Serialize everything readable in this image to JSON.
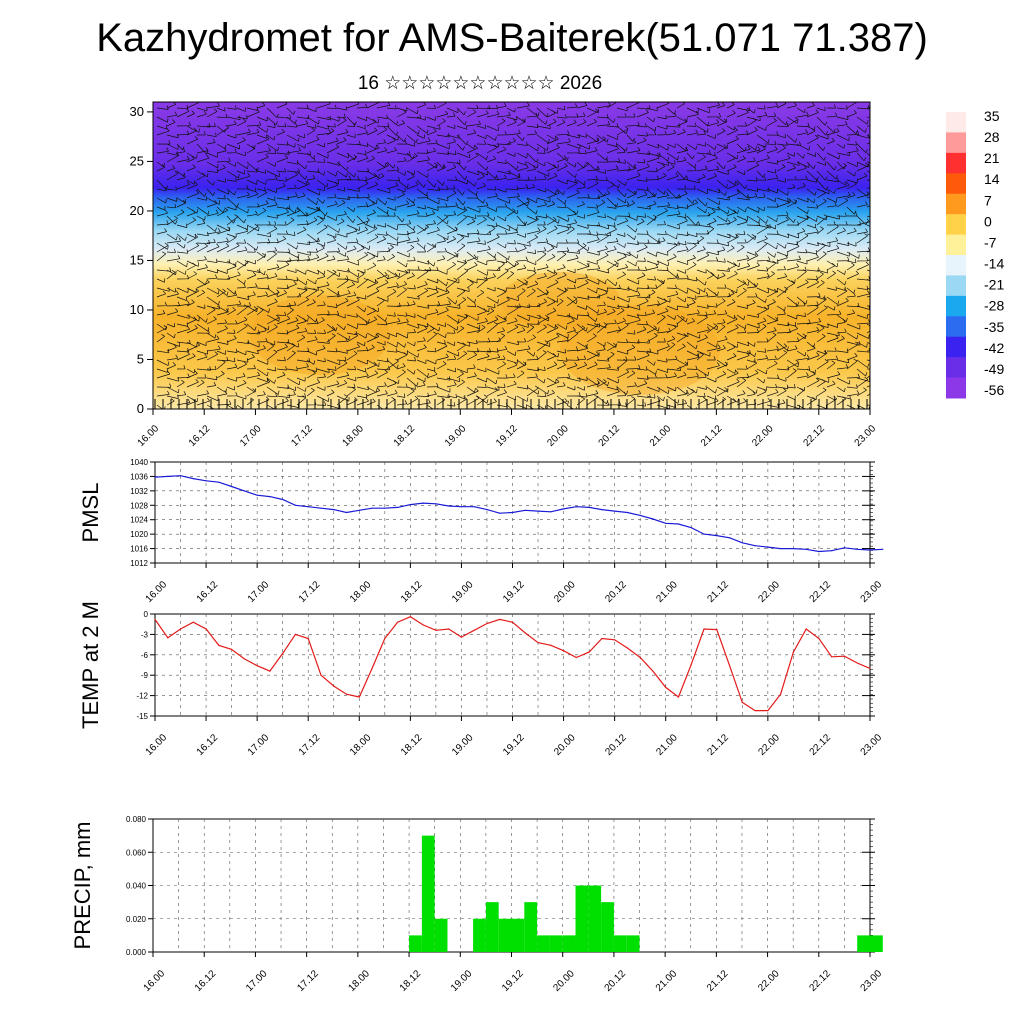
{
  "title": "Kazhydromet for AMS-Baiterek(51.071 71.387)",
  "subtitle": "16 ☆☆☆☆☆☆☆☆☆☆ 2026",
  "time_labels": [
    "16.00",
    "16.12",
    "17.00",
    "17.12",
    "18.00",
    "18.12",
    "19.00",
    "19.12",
    "20.00",
    "20.12",
    "21.00",
    "21.12",
    "22.00",
    "22.12",
    "23.00"
  ],
  "chart_data": [
    {
      "type": "heatmap",
      "name": "cross-section",
      "ylim": [
        0,
        31
      ],
      "yticks": [
        "0",
        "5",
        "10",
        "15",
        "20",
        "25",
        "30"
      ],
      "colorbar": {
        "labels": [
          "35",
          "28",
          "21",
          "14",
          "7",
          "0",
          "-7",
          "-14",
          "-21",
          "-28",
          "-35",
          "-42",
          "-49",
          "-56"
        ],
        "stops": [
          "#ffeaea",
          "#ff9a9a",
          "#ff3030",
          "#ff5a0a",
          "#ff9a1e",
          "#ffd24a",
          "#fff09a",
          "#e8f4fb",
          "#9ad8f4",
          "#1aa8ef",
          "#2c6cf0",
          "#3a22f0",
          "#6a2ee8",
          "#8c38e8"
        ]
      }
    },
    {
      "type": "line",
      "name": "pmsl",
      "ylabel": "PMSL",
      "ylim": [
        1012,
        1040
      ],
      "yticks": [
        "1012",
        "1016",
        "1020",
        "1024",
        "1028",
        "1032",
        "1036",
        "1040"
      ],
      "color": "#1a1ad8",
      "values": [
        1035.8,
        1036.0,
        1036.2,
        1035.4,
        1034.8,
        1034.4,
        1033.2,
        1032.0,
        1030.8,
        1030.4,
        1029.6,
        1028.0,
        1027.6,
        1027.2,
        1026.8,
        1026.0,
        1026.6,
        1027.2,
        1027.2,
        1027.4,
        1028.2,
        1028.6,
        1028.4,
        1027.8,
        1027.6,
        1027.6,
        1026.8,
        1025.8,
        1026.0,
        1026.6,
        1026.4,
        1026.2,
        1027.0,
        1027.6,
        1027.4,
        1026.8,
        1026.4,
        1026.0,
        1025.2,
        1024.2,
        1023.0,
        1022.8,
        1021.8,
        1020.0,
        1019.6,
        1019.0,
        1017.6,
        1016.8,
        1016.4,
        1016.0,
        1016.0,
        1015.8,
        1015.2,
        1015.4,
        1016.2,
        1015.8,
        1015.6,
        1015.8
      ]
    },
    {
      "type": "line",
      "name": "temp2m",
      "ylabel": "TEMP at 2 M",
      "ylim": [
        -15,
        0
      ],
      "yticks": [
        "-15",
        "-12",
        "-9",
        "-6",
        "-3",
        "0"
      ],
      "color": "#e41a1a",
      "values": [
        -0.8,
        -3.5,
        -2.2,
        -1.2,
        -2.2,
        -4.6,
        -5.2,
        -6.6,
        -7.6,
        -8.4,
        -5.8,
        -3.0,
        -3.6,
        -9.0,
        -10.6,
        -11.8,
        -12.2,
        -8.0,
        -3.6,
        -1.2,
        -0.4,
        -1.6,
        -2.4,
        -2.2,
        -3.4,
        -2.4,
        -1.4,
        -0.8,
        -1.2,
        -2.8,
        -4.2,
        -4.6,
        -5.4,
        -6.4,
        -5.6,
        -3.6,
        -3.8,
        -5.0,
        -6.4,
        -8.4,
        -10.8,
        -12.2,
        -7.4,
        -2.2,
        -2.3,
        -7.6,
        -13.0,
        -14.2,
        -14.2,
        -11.8,
        -5.6,
        -2.2,
        -3.6,
        -6.3,
        -6.2,
        -7.2,
        -8.0
      ]
    },
    {
      "type": "bar",
      "name": "precip",
      "ylabel": "PRECIP, mm",
      "ylim": [
        0,
        0.08
      ],
      "yticks": [
        "0.000",
        "0.020",
        "0.040",
        "0.060",
        "0.080"
      ],
      "color": "#00e000",
      "bars": [
        {
          "t0": 20.0,
          "t1": 21.0,
          "value": 0.01
        },
        {
          "t0": 21.0,
          "t1": 22.0,
          "value": 0.07
        },
        {
          "t0": 22.0,
          "t1": 23.0,
          "value": 0.02
        },
        {
          "t0": 25.0,
          "t1": 26.0,
          "value": 0.02
        },
        {
          "t0": 26.0,
          "t1": 27.0,
          "value": 0.03
        },
        {
          "t0": 27.0,
          "t1": 28.0,
          "value": 0.02
        },
        {
          "t0": 28.0,
          "t1": 29.0,
          "value": 0.02
        },
        {
          "t0": 29.0,
          "t1": 30.0,
          "value": 0.03
        },
        {
          "t0": 30.0,
          "t1": 31.0,
          "value": 0.01
        },
        {
          "t0": 31.0,
          "t1": 32.0,
          "value": 0.01
        },
        {
          "t0": 32.0,
          "t1": 33.0,
          "value": 0.01
        },
        {
          "t0": 33.0,
          "t1": 34.0,
          "value": 0.04
        },
        {
          "t0": 34.0,
          "t1": 35.0,
          "value": 0.04
        },
        {
          "t0": 35.0,
          "t1": 36.0,
          "value": 0.03
        },
        {
          "t0": 36.0,
          "t1": 37.0,
          "value": 0.01
        },
        {
          "t0": 37.0,
          "t1": 38.0,
          "value": 0.01
        },
        {
          "t0": 55.0,
          "t1": 56.0,
          "value": 0.01
        },
        {
          "t0": 56.0,
          "t1": 57.0,
          "value": 0.01
        }
      ]
    }
  ]
}
